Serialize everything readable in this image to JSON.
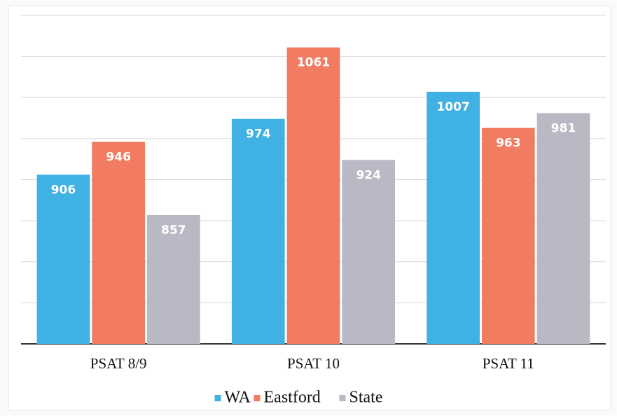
{
  "chart_data": {
    "type": "bar",
    "categories": [
      "PSAT 8/9",
      "PSAT 10",
      "PSAT 11"
    ],
    "series": [
      {
        "name": "WA",
        "color": "#3fb1e3",
        "values": [
          906,
          974,
          1007
        ]
      },
      {
        "name": "Eastford",
        "color": "#f27c62",
        "values": [
          946,
          1061,
          963
        ]
      },
      {
        "name": "State",
        "color": "#b9b9c6",
        "values": [
          857,
          924,
          981
        ]
      }
    ],
    "ylim": [
      700,
      1100
    ],
    "yticks": [
      700,
      750,
      800,
      850,
      900,
      950,
      1000,
      1050,
      1100
    ],
    "grid": true,
    "legend": "bottom"
  }
}
